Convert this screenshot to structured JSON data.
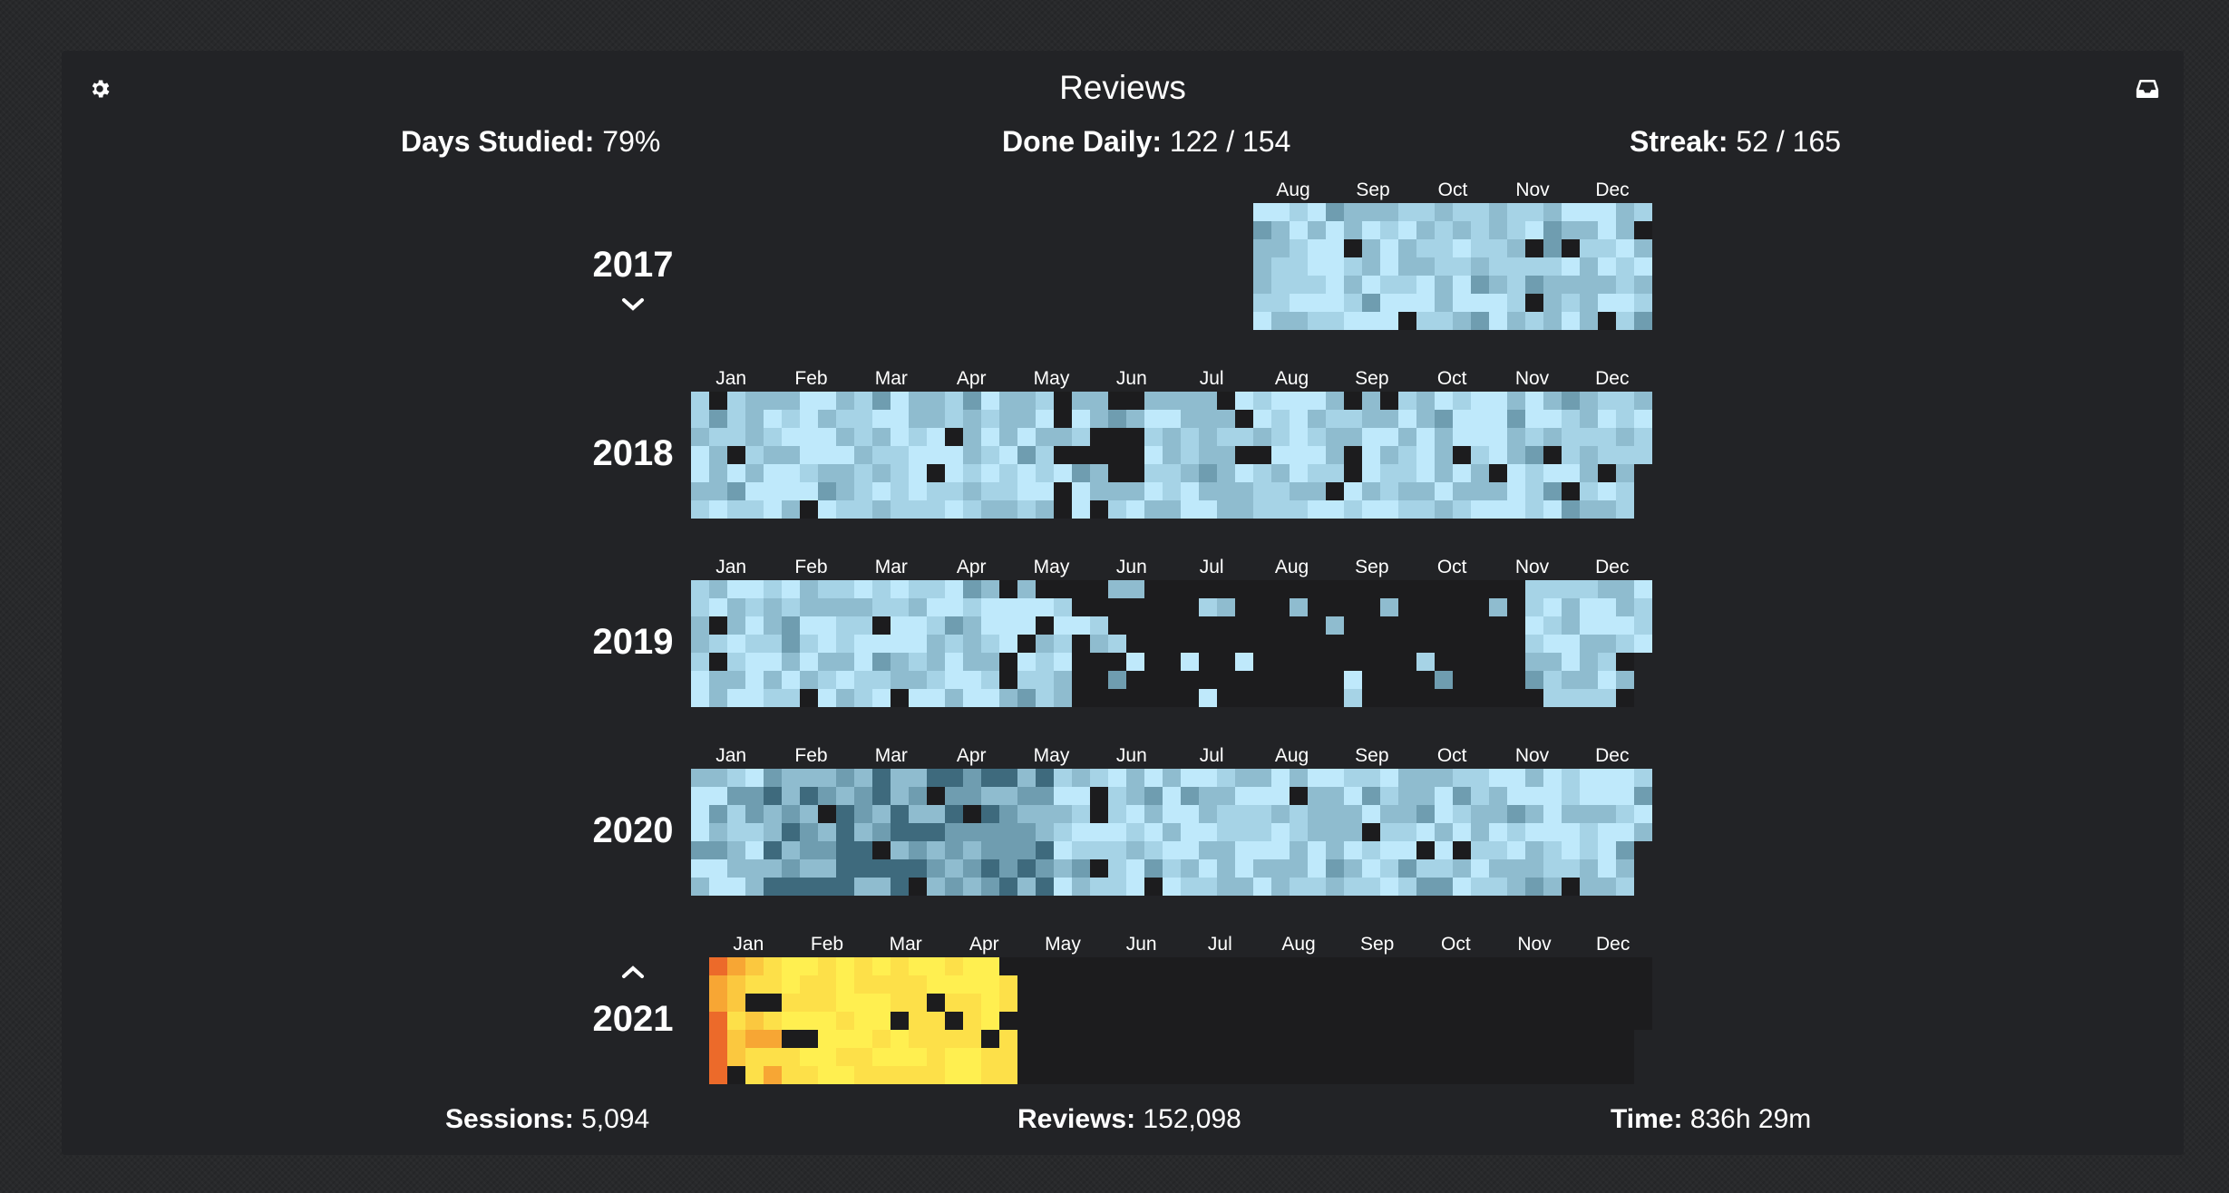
{
  "header": {
    "title": "Reviews",
    "settings_icon": "gear-icon",
    "inbox_icon": "inbox-tray-icon"
  },
  "top_stats": {
    "days_studied": {
      "label": "Days Studied:",
      "value": "79%"
    },
    "done_daily": {
      "label": "Done Daily:",
      "value": "122 / 154"
    },
    "streak": {
      "label": "Streak:",
      "value": "52 / 165"
    }
  },
  "bottom_stats": {
    "sessions": {
      "label": "Sessions:",
      "value": "5,094"
    },
    "reviews": {
      "label": "Reviews:",
      "value": "152,098"
    },
    "time": {
      "label": "Time:",
      "value": "836h 29m"
    }
  },
  "years": [
    {
      "year": "2017",
      "months": [
        "Aug",
        "Sep",
        "Oct",
        "Nov",
        "Dec"
      ],
      "color_scale": "blue",
      "toggle": "collapse",
      "toggle_icon": "chevron-down-icon"
    },
    {
      "year": "2018",
      "months": [
        "Jan",
        "Feb",
        "Mar",
        "Apr",
        "May",
        "Jun",
        "Jul",
        "Aug",
        "Sep",
        "Oct",
        "Nov",
        "Dec"
      ],
      "color_scale": "blue"
    },
    {
      "year": "2019",
      "months": [
        "Jan",
        "Feb",
        "Mar",
        "Apr",
        "May",
        "Jun",
        "Jul",
        "Aug",
        "Sep",
        "Oct",
        "Nov",
        "Dec"
      ],
      "color_scale": "blue"
    },
    {
      "year": "2020",
      "months": [
        "Jan",
        "Feb",
        "Mar",
        "Apr",
        "May",
        "Jun",
        "Jul",
        "Aug",
        "Sep",
        "Oct",
        "Nov",
        "Dec"
      ],
      "color_scale": "blue"
    },
    {
      "year": "2021",
      "months": [
        "Jan",
        "Feb",
        "Mar",
        "Apr",
        "May",
        "Jun",
        "Jul",
        "Aug",
        "Sep",
        "Oct",
        "Nov",
        "Dec"
      ],
      "color_scale": "yellow-orange",
      "toggle": "expand",
      "toggle_icon": "chevron-up-icon"
    }
  ],
  "colors": {
    "panel_bg": "#222326",
    "empty_cell": "#1c1c1e",
    "blue_scale": [
      "#bfe9fb",
      "#a6d3e6",
      "#8fbccf",
      "#6f9db0",
      "#3e6a7d"
    ],
    "yellow_scale": [
      "#ffef50",
      "#fde049",
      "#fbc83f",
      "#f7a634",
      "#ec6a2a"
    ]
  }
}
